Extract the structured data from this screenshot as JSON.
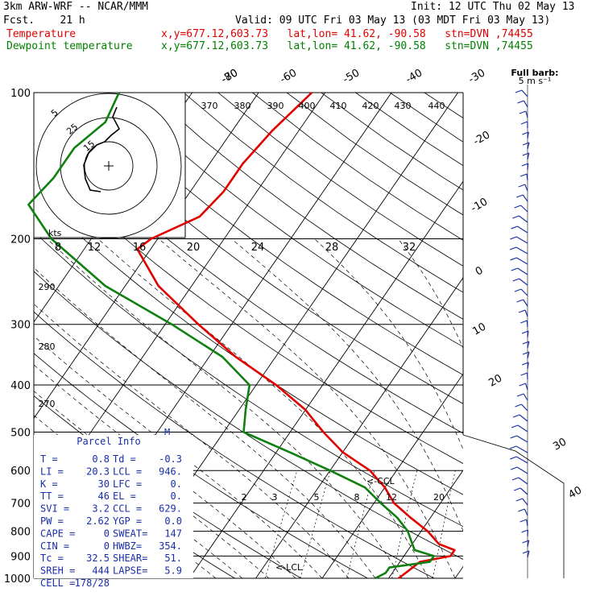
{
  "header": {
    "model": "3km ARW-WRF -- NCAR/MMM",
    "init": "Init: 12 UTC Thu 02 May 13",
    "fcst": "Fcst.    21 h",
    "valid": "Valid: 09 UTC Fri 03 May 13 (03 MDT Fri 03 May 13)",
    "temp_label": "Temperature",
    "dew_label": "Dewpoint temperature",
    "temp_loc": "x,y=677.12,603.73   lat,lon= 41.62, -90.58   stn=DVN ,74455",
    "dew_loc": "x,y=677.12,603.73   lat,lon= 41.62, -90.58   stn=DVN ,74455"
  },
  "colors": {
    "temperature": "#e00000",
    "dewpoint": "#108010",
    "wind": "#1a2ea8",
    "grid": "#000000"
  },
  "chart_data": {
    "type": "skew-t",
    "pressure_ticks": [
      "100",
      "200",
      "300",
      "400",
      "500",
      "600",
      "700",
      "800",
      "900",
      "1000"
    ],
    "isotherm_labels": [
      "-80",
      "-70",
      "-60",
      "-50",
      "-40",
      "-30",
      "-20",
      "-10",
      "0",
      "10",
      "20",
      "30",
      "40"
    ],
    "theta_labels": [
      "370",
      "380",
      "390",
      "400",
      "410",
      "420",
      "430",
      "440",
      "290",
      "280",
      "270"
    ],
    "mixing_ratio_labels": [
      "2",
      "3",
      "5",
      "8",
      "12",
      "20"
    ],
    "hodograph": {
      "unit": "kts",
      "ring_labels": [
        "5",
        "25",
        "15"
      ],
      "speed_ticks": [
        "8",
        "12",
        "16",
        "20",
        "24",
        "28",
        "32"
      ]
    },
    "barb_legend": {
      "title": "Full barb:",
      "unit": "5 m s⁻¹"
    },
    "annotations": {
      "ccl": "<-CCL",
      "lcl": "<-LCL",
      "m": "M"
    },
    "temperature": [
      {
        "p": 1000,
        "t": 11.5
      },
      {
        "p": 975,
        "t": 12
      },
      {
        "p": 950,
        "t": 12.5
      },
      {
        "p": 925,
        "t": 13
      },
      {
        "p": 900,
        "t": 17
      },
      {
        "p": 875,
        "t": 17
      },
      {
        "p": 850,
        "t": 14
      },
      {
        "p": 800,
        "t": 11
      },
      {
        "p": 750,
        "t": 7
      },
      {
        "p": 700,
        "t": 3
      },
      {
        "p": 650,
        "t": 0
      },
      {
        "p": 600,
        "t": -4
      },
      {
        "p": 550,
        "t": -10
      },
      {
        "p": 500,
        "t": -15
      },
      {
        "p": 450,
        "t": -20
      },
      {
        "p": 400,
        "t": -27
      },
      {
        "p": 350,
        "t": -36
      },
      {
        "p": 300,
        "t": -45
      },
      {
        "p": 250,
        "t": -55
      },
      {
        "p": 210,
        "t": -62
      },
      {
        "p": 200,
        "t": -61
      },
      {
        "p": 180,
        "t": -56
      },
      {
        "p": 160,
        "t": -55
      },
      {
        "p": 140,
        "t": -55
      },
      {
        "p": 120,
        "t": -54
      },
      {
        "p": 100,
        "t": -52
      }
    ],
    "dewpoint": [
      {
        "p": 1000,
        "t": 8
      },
      {
        "p": 975,
        "t": 9
      },
      {
        "p": 950,
        "t": 9
      },
      {
        "p": 925,
        "t": 14.5
      },
      {
        "p": 900,
        "t": 14.5
      },
      {
        "p": 875,
        "t": 11
      },
      {
        "p": 850,
        "t": 10
      },
      {
        "p": 800,
        "t": 8
      },
      {
        "p": 750,
        "t": 5
      },
      {
        "p": 700,
        "t": 1
      },
      {
        "p": 650,
        "t": -3
      },
      {
        "p": 600,
        "t": -10
      },
      {
        "p": 550,
        "t": -18
      },
      {
        "p": 500,
        "t": -27
      },
      {
        "p": 450,
        "t": -29
      },
      {
        "p": 400,
        "t": -31
      },
      {
        "p": 350,
        "t": -38
      },
      {
        "p": 300,
        "t": -49
      },
      {
        "p": 250,
        "t": -63
      },
      {
        "p": 200,
        "t": -76
      },
      {
        "p": 170,
        "t": -83
      },
      {
        "p": 150,
        "t": -82
      },
      {
        "p": 130,
        "t": -82
      },
      {
        "p": 115,
        "t": -80
      },
      {
        "p": 100,
        "t": -81
      }
    ]
  },
  "parcel_info": {
    "title": "Parcel Info",
    "rows": [
      [
        "T  =",
        "0.8",
        "Td =",
        "-0.3"
      ],
      [
        "LI =",
        "20.3",
        "LCL =",
        "946."
      ],
      [
        "K  =",
        "30",
        "LFC =",
        "0."
      ],
      [
        "TT =",
        "46",
        "EL  =",
        "0."
      ],
      [
        "SVI =",
        "3.2",
        "CCL =",
        "629."
      ],
      [
        "PW =",
        "2.62",
        "YGP =",
        "0.0"
      ],
      [
        "CAPE =",
        "0",
        "SWEAT=",
        "147"
      ],
      [
        "CIN =",
        "0",
        "HWBZ=",
        "354."
      ],
      [
        "Tc =",
        "32.5",
        "SHEAR=",
        "51."
      ],
      [
        "SREH =",
        "444",
        "LAPSE=",
        "5.9"
      ],
      [
        "CELL =",
        "178/28",
        "",
        ""
      ]
    ]
  }
}
